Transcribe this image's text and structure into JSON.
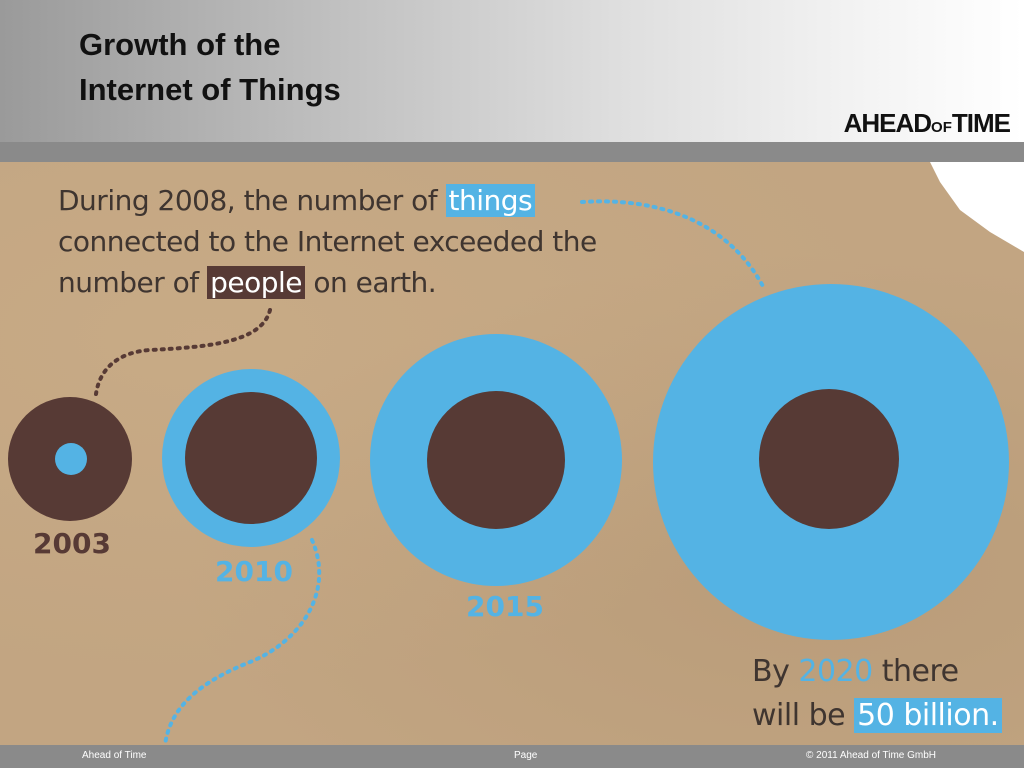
{
  "header": {
    "title_line1": "Growth of the",
    "title_line2": "Internet of Things",
    "logo_main": "AHEAD",
    "logo_small": "OF",
    "logo_end": "TIME"
  },
  "infographic": {
    "intro": {
      "part1": "During 2008, the number of ",
      "highlight_things": "things",
      "part2": "connected to the Internet exceeded the",
      "part3": "number of ",
      "highlight_people": "people",
      "part4": " on earth."
    },
    "years": [
      "2003",
      "2010",
      "2015"
    ],
    "caption": {
      "by": "By ",
      "year_2020": "2020",
      "there": " there",
      "will_be": "will be ",
      "amount": "50 billion."
    },
    "colors": {
      "things_blue": "#54b3e4",
      "people_brown": "#573a35",
      "paper": "#c2a582"
    }
  },
  "footer": {
    "left": "Ahead of Time",
    "center": "Page",
    "right": "© 2011 Ahead of Time GmbH"
  }
}
